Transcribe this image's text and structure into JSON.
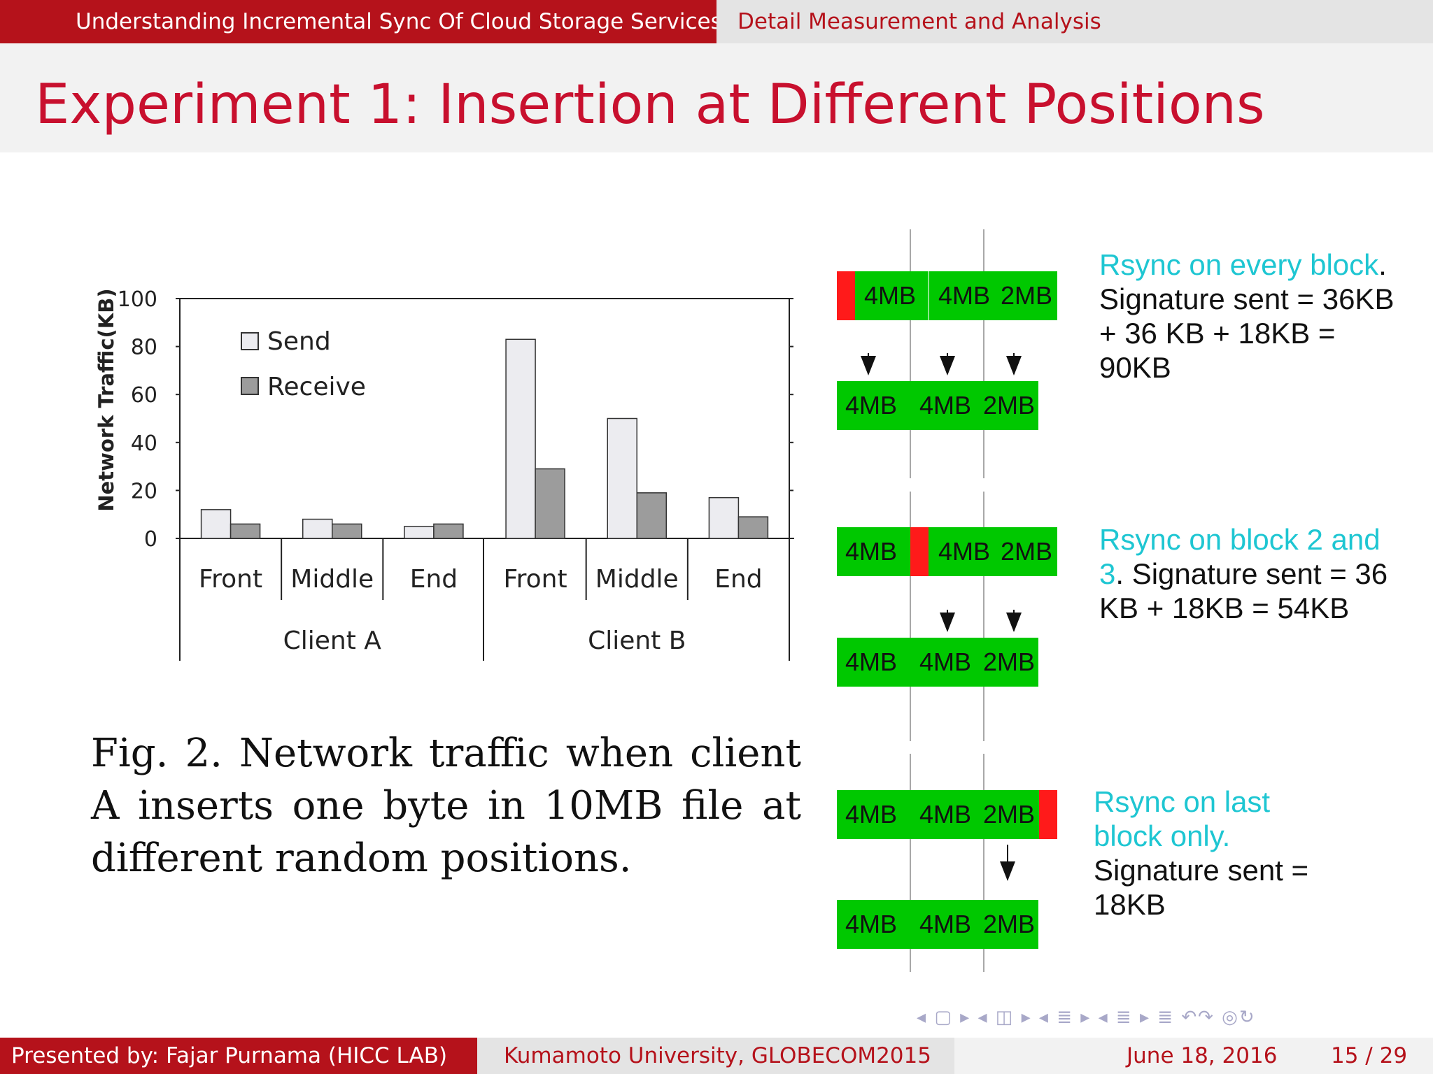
{
  "header": {
    "left_title": "Understanding Incremental Sync Of Cloud Storage Services",
    "right_title": "Detail Measurement and Analysis"
  },
  "slide": {
    "title": "Experiment 1: Insertion at Different Positions"
  },
  "chart_data": {
    "type": "bar",
    "ylabel": "Network Traffic(KB)",
    "ylim": [
      0,
      100
    ],
    "yticks": [
      0,
      20,
      40,
      60,
      80,
      100
    ],
    "groups": [
      "Client A",
      "Client B"
    ],
    "categories": [
      "Front",
      "Middle",
      "End",
      "Front",
      "Middle",
      "End"
    ],
    "series": [
      {
        "name": "Send",
        "values": [
          12,
          8,
          5,
          83,
          50,
          17
        ],
        "color": "#ececf0"
      },
      {
        "name": "Receive",
        "values": [
          6,
          6,
          6,
          29,
          19,
          9
        ],
        "color": "#9c9c9c"
      }
    ],
    "legend": "top-left",
    "grid": false
  },
  "caption": "Fig. 2.    Network traffic when client A inserts one byte in 10MB file at different random positions.",
  "diagram": {
    "block_labels": [
      "4MB",
      "4MB",
      "2MB"
    ],
    "scenarios": [
      {
        "red_position": "front",
        "note_highlight": "Rsync on every block",
        "note_rest": ". Signature sent = 36KB + 36 KB + 18KB = 90KB"
      },
      {
        "red_position": "middle",
        "note_highlight": "Rsync on block 2 and 3",
        "note_rest": ". Signature sent =  36 KB + 18KB = 54KB"
      },
      {
        "red_position": "end",
        "note_highlight": "Rsync on last block only.",
        "note_rest": " Signature sent = 18KB"
      }
    ]
  },
  "footer": {
    "presenter": "Presented by: Fajar Purnama  (HICC LAB)",
    "venue": "Kumamoto University, GLOBECOM2015",
    "date": "June 18, 2016",
    "page": "15 / 29"
  },
  "nav": {
    "symbols": "◂ ▢ ▸  ◂ ◫ ▸  ◂ ≣ ▸  ◂ ≣ ▸   ≣   ↶↷ ◎↻"
  },
  "colors": {
    "brand_red": "#b5121b",
    "title_red": "#c8102e",
    "block_green": "#00c800",
    "insert_red": "#ff1a1a",
    "note_cyan": "#1ec6d2"
  }
}
